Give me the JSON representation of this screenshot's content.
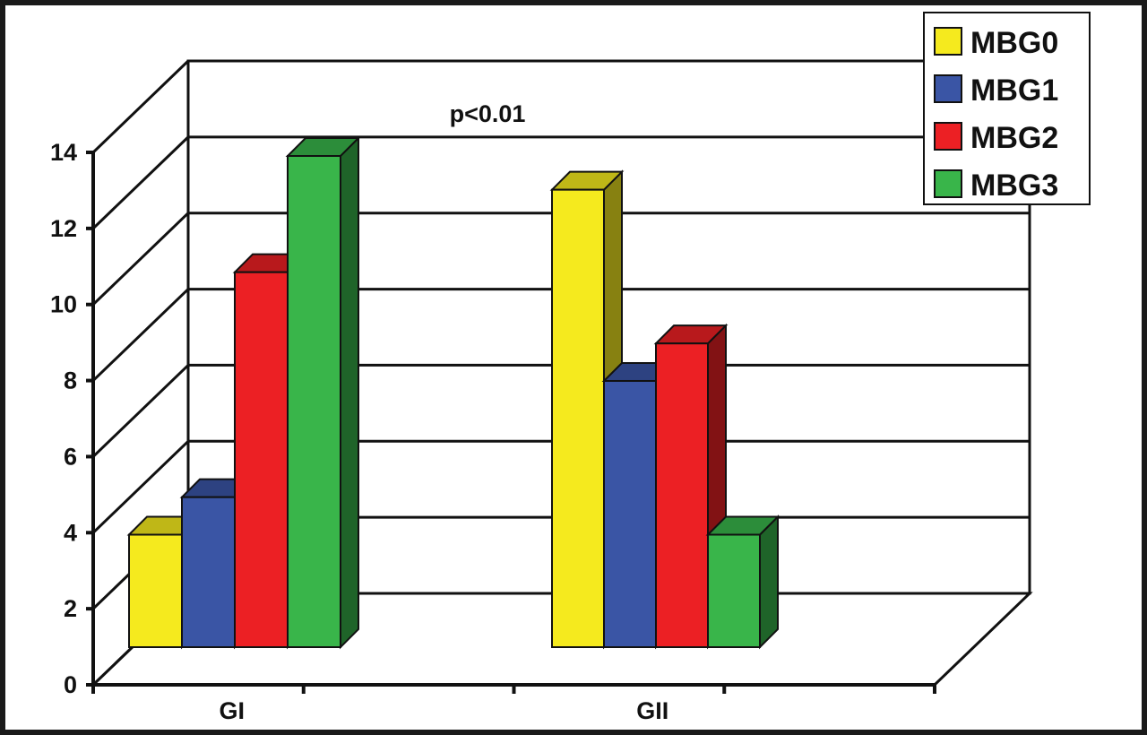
{
  "chart_data": {
    "type": "bar",
    "style": "3d-clustered-column",
    "title": "",
    "xlabel": "",
    "ylabel": "",
    "annotation": "p<0.01",
    "categories": [
      "GI",
      "GII"
    ],
    "series": [
      {
        "name": "MBG0",
        "color": "#f5ea1e",
        "values": [
          3,
          12.2
        ]
      },
      {
        "name": "MBG1",
        "color": "#3a55a5",
        "values": [
          4,
          7.1
        ]
      },
      {
        "name": "MBG2",
        "color": "#ec2024",
        "values": [
          10,
          8.1
        ]
      },
      {
        "name": "MBG3",
        "color": "#39b54a",
        "values": [
          13.1,
          3
        ]
      }
    ],
    "ylim": [
      0,
      14
    ],
    "yticks": [
      "0",
      "2",
      "4",
      "6",
      "8",
      "10",
      "12",
      "14"
    ],
    "grid": true,
    "legend": "top-right"
  }
}
